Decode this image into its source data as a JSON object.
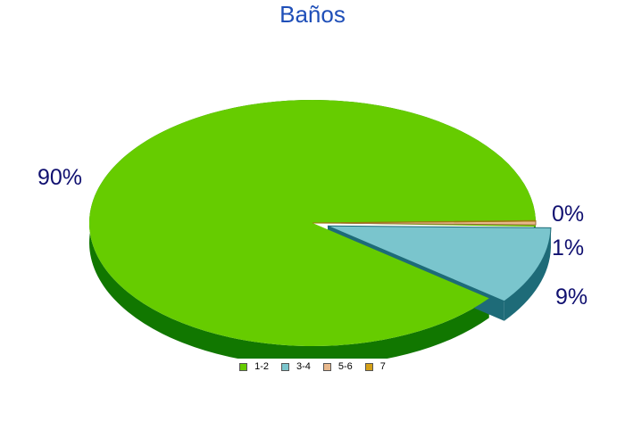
{
  "chart_data": {
    "type": "pie",
    "title": "Baños",
    "categories": [
      "1-2",
      "3-4",
      "5-6",
      "7"
    ],
    "values": [
      90,
      9,
      1,
      0
    ],
    "value_labels": [
      "90%",
      "9%",
      "1%",
      "0%"
    ],
    "colors": [
      "#66cc00",
      "#7ac5cd",
      "#e8b88c",
      "#d4a017"
    ],
    "side_colors": [
      "#117700",
      "#1e6b78",
      "#9c6a3c",
      "#9c7a10"
    ],
    "exploded_category": "3-4",
    "three_d": true,
    "legend_position": "bottom"
  }
}
